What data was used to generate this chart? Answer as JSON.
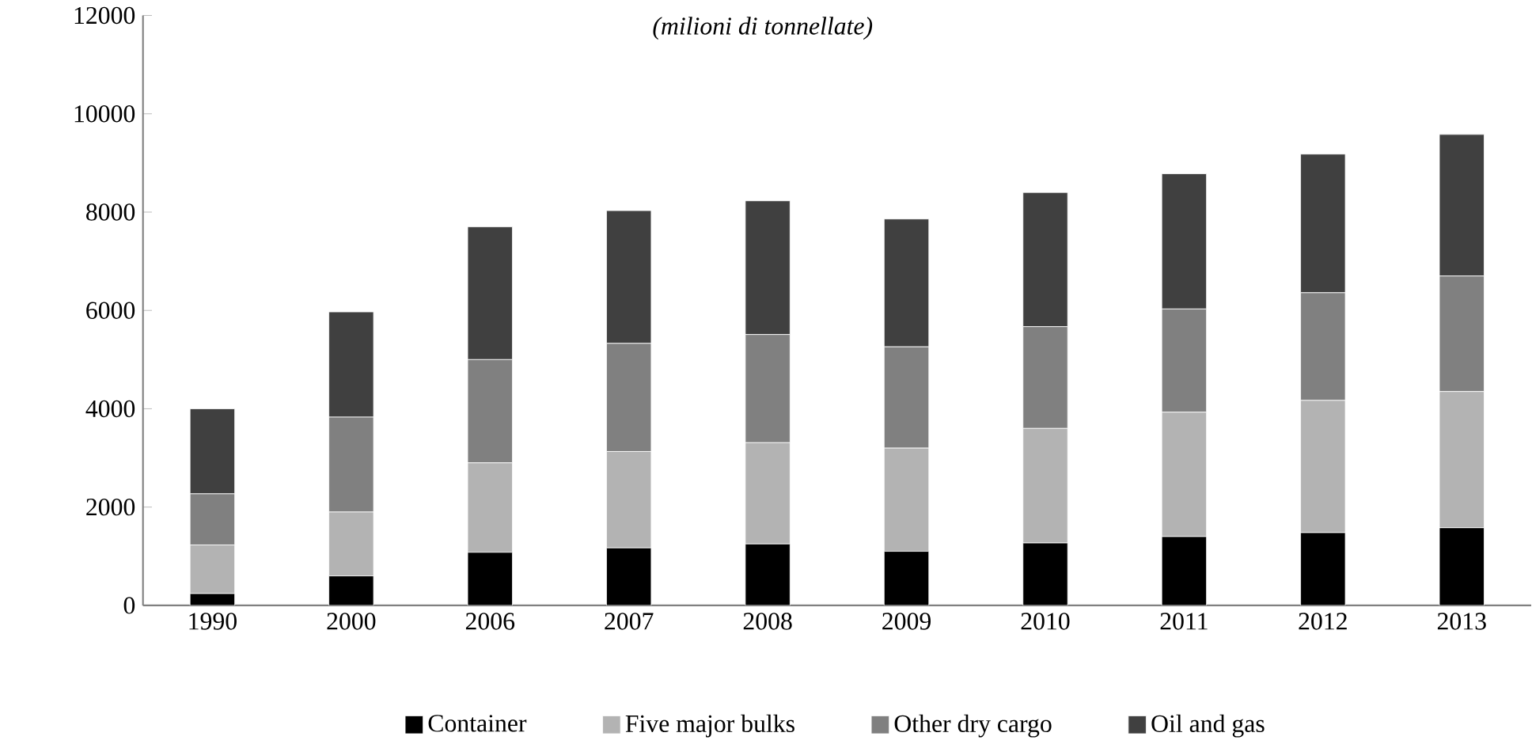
{
  "chart_data": {
    "type": "bar",
    "stacked": true,
    "title": "(milioni di tonnellate)",
    "categories": [
      "1990",
      "2000",
      "2006",
      "2007",
      "2008",
      "2009",
      "2010",
      "2011",
      "2012",
      "2013"
    ],
    "series": [
      {
        "name": "Container",
        "color": "#000000",
        "values": [
          240,
          600,
          1080,
          1170,
          1250,
          1100,
          1270,
          1400,
          1480,
          1580
        ]
      },
      {
        "name": "Five major bulks",
        "color": "#b3b3b3",
        "values": [
          990,
          1300,
          1820,
          1960,
          2060,
          2100,
          2330,
          2530,
          2690,
          2770
        ]
      },
      {
        "name": "Other dry cargo",
        "color": "#808080",
        "values": [
          1040,
          1930,
          2100,
          2200,
          2200,
          2060,
          2070,
          2100,
          2190,
          2350
        ]
      },
      {
        "name": "Oil and gas",
        "color": "#404040",
        "values": [
          1730,
          2140,
          2700,
          2700,
          2720,
          2600,
          2730,
          2750,
          2820,
          2880
        ]
      }
    ],
    "ylim": [
      0,
      12000
    ],
    "yticks": [
      0,
      2000,
      4000,
      6000,
      8000,
      10000,
      12000
    ],
    "grid": false,
    "legend": "bottom"
  }
}
